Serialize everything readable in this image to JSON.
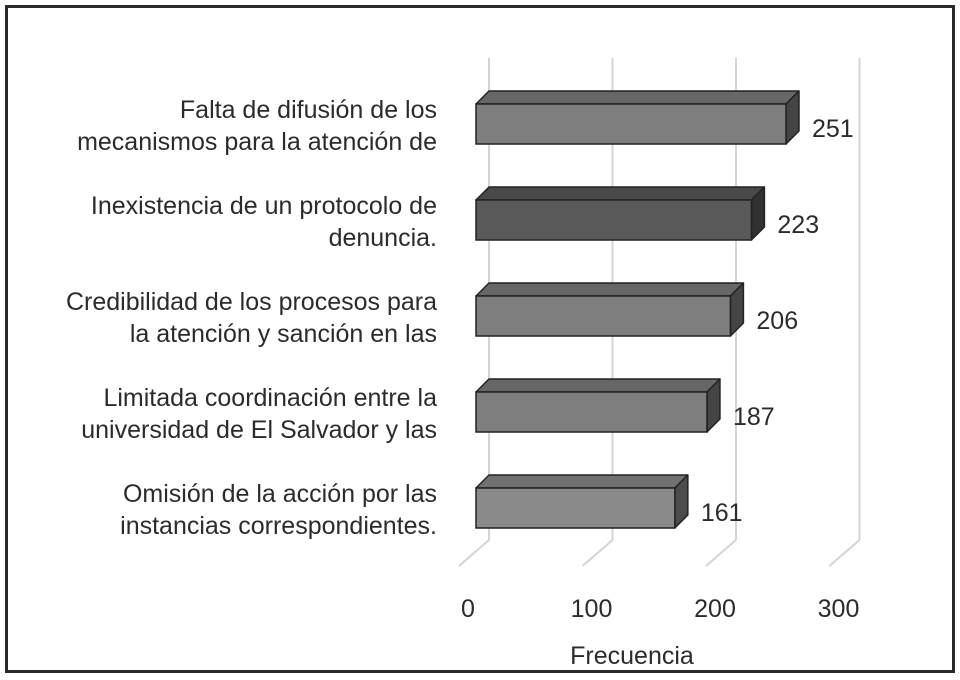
{
  "chart_data": {
    "type": "bar",
    "orientation": "horizontal",
    "three_d": true,
    "categories": [
      [
        "Falta de difusión de los",
        "mecanismos para la atención de"
      ],
      [
        "Inexistencia de un protocolo de",
        "denuncia."
      ],
      [
        "Credibilidad de los procesos para",
        "la atención y sanción en las"
      ],
      [
        "Limitada coordinación entre la",
        "universidad de El Salvador y las"
      ],
      [
        "Omisión de la acción por las",
        "instancias correspondientes."
      ]
    ],
    "values": [
      251,
      223,
      206,
      187,
      161
    ],
    "value_labels": [
      "251",
      "223",
      "206",
      "187",
      "161"
    ],
    "bar_colors": [
      "#7e7e7e",
      "#595959",
      "#7e7e7e",
      "#7e7e7e",
      "#8a8a8a"
    ],
    "xticks": [
      "0",
      "100",
      "200",
      "300"
    ],
    "xlim": [
      0,
      300
    ],
    "xlabel": "Frecuencia",
    "grid": true
  }
}
